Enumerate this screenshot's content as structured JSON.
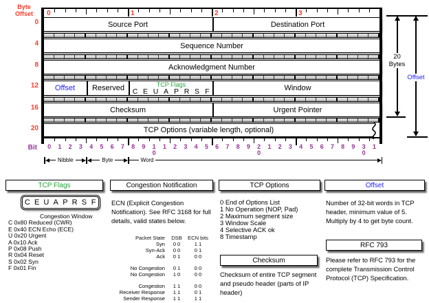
{
  "colors": {
    "red": "#ff3b2a",
    "purple": "#993399",
    "green": "#23a337",
    "blue": "#2222ff"
  },
  "diagram": {
    "byte_offset_label_line1": "Byte",
    "byte_offset_label_line2": "Offset",
    "top_byte_numbers": [
      "0",
      "1",
      "2",
      "3"
    ],
    "rows": [
      {
        "offset": "0",
        "fields": [
          {
            "label": "Source Port"
          },
          {
            "label": "Destination Port"
          }
        ]
      },
      {
        "offset": "4",
        "fields": [
          {
            "label": "Sequence Number"
          }
        ]
      },
      {
        "offset": "8",
        "fields": [
          {
            "label": "Acknowledgment Number"
          }
        ]
      },
      {
        "offset": "12",
        "fields": [
          {
            "label": "Offset"
          },
          {
            "label": "Reserved"
          },
          {
            "label": "TCP Flags"
          },
          {
            "label": "Window"
          }
        ]
      },
      {
        "offset": "16",
        "fields": [
          {
            "label": "Checksum"
          },
          {
            "label": "Urgent Pointer"
          }
        ]
      },
      {
        "offset": "20",
        "fields": [
          {
            "label": "TCP Options (variable length, optional)"
          }
        ]
      }
    ],
    "flag_letters": [
      "C",
      "E",
      "U",
      "A",
      "P",
      "R",
      "S",
      "F"
    ],
    "right_annotations": {
      "bytes_line1": "20",
      "bytes_line2": "Bytes",
      "offset_label": "Offset"
    },
    "bit_label": "Bit",
    "bit_numbers": [
      "0",
      "1",
      "2",
      "3",
      "4",
      "5",
      "6",
      "7",
      "8",
      "9",
      "1|0",
      "1",
      "2",
      "3",
      "4",
      "5",
      "6",
      "7",
      "8",
      "9",
      "2|0",
      "1",
      "2",
      "3",
      "4",
      "5",
      "6",
      "7",
      "8",
      "9",
      "3|0",
      "1"
    ],
    "spans": {
      "nibble": "Nibble",
      "byte": "Byte",
      "word": "Word"
    }
  },
  "panels": {
    "tcp_flags": {
      "title": "TCP Flags",
      "lines": [
        "Congestion Window",
        "C 0x80 Reduced (CWR)",
        "E 0x40 ECN Echo (ECE)",
        "U 0x20 Urgent",
        "A 0x10 Ack",
        "P 0x08 Push",
        "R 0x04 Reset",
        "S 0x02 Syn",
        "F 0x01 Fin"
      ]
    },
    "congestion": {
      "title": "Congestion Notification",
      "body": "ECN (Explicit Congestion Notification).  See RFC 3168 for full details, valid states below.",
      "table": {
        "headers": [
          "Packet State",
          "DSB",
          "ECN bits"
        ],
        "groups": [
          [
            [
              "Syn",
              "0 0",
              "1 1"
            ],
            [
              "Syn-Ack",
              "0 0",
              "0 1"
            ],
            [
              "Ack",
              "0 1",
              "0 0"
            ]
          ],
          [
            [
              "No Congestion",
              "0 1",
              "0 0"
            ],
            [
              "No Congestion",
              "1 0",
              "0 0"
            ]
          ],
          [
            [
              "Congestion",
              "1 1",
              "0 0"
            ],
            [
              "Receiver Response",
              "1 1",
              "0 1"
            ],
            [
              "Sender Response",
              "1 1",
              "1 1"
            ]
          ]
        ]
      }
    },
    "tcp_options": {
      "title": "TCP Options",
      "items": [
        "0 End of Options List",
        "1 No Operation (NOP, Pad)",
        "2 Maximum segment size",
        "3 Window Scale",
        "4 Selective ACK ok",
        "8 Timestamp"
      ]
    },
    "checksum_panel": {
      "title": "Checksum",
      "body": "Checksum of entire TCP segment and pseudo header (parts of IP header)"
    },
    "offset_panel": {
      "title": "Offset",
      "body": "Number of 32-bit words in TCP header, minimum value of 5.  Multiply by 4 to get byte count."
    },
    "rfc_panel": {
      "title": "RFC 793",
      "body": "Please refer to RFC 793 for the complete Transmission Control Protocol (TCP) Specification."
    }
  }
}
